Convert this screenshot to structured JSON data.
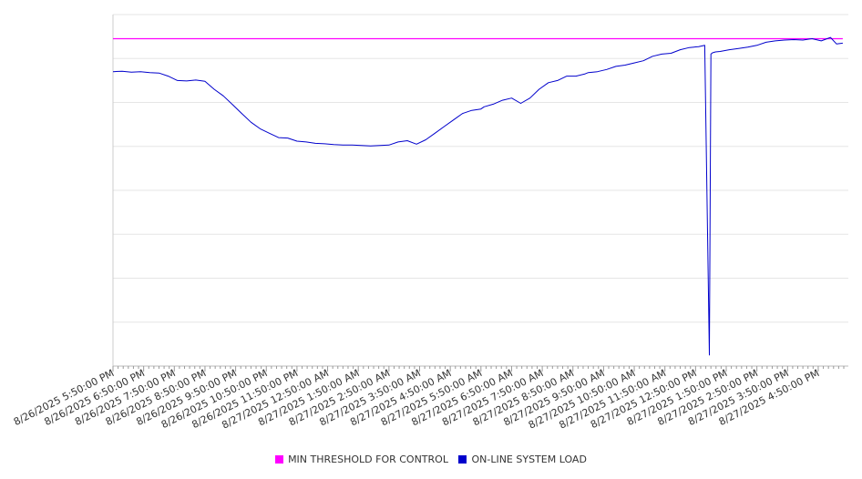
{
  "chart_data": {
    "type": "line",
    "title": "",
    "xlabel": "",
    "ylabel": "",
    "x_tick_labels": [
      "8/26/2025 5:50:00 PM",
      "8/26/2025 6:50:00 PM",
      "8/26/2025 7:50:00 PM",
      "8/26/2025 8:50:00 PM",
      "8/26/2025 9:50:00 PM",
      "8/26/2025 10:50:00 PM",
      "8/26/2025 11:50:00 PM",
      "8/27/2025 12:50:00 AM",
      "8/27/2025 1:50:00 AM",
      "8/27/2025 2:50:00 AM",
      "8/27/2025 3:50:00 AM",
      "8/27/2025 4:50:00 AM",
      "8/27/2025 5:50:00 AM",
      "8/27/2025 6:50:00 AM",
      "8/27/2025 7:50:00 AM",
      "8/27/2025 8:50:00 AM",
      "8/27/2025 9:50:00 AM",
      "8/27/2025 10:50:00 AM",
      "8/27/2025 11:50:00 AM",
      "8/27/2025 12:50:00 PM",
      "8/27/2025 1:50:00 PM",
      "8/27/2025 2:50:00 PM",
      "8/27/2025 3:50:00 PM",
      "8/27/2025 4:50:00 PM"
    ],
    "y_tick_labels_visible": false,
    "ylim": [
      0,
      8
    ],
    "grid": true,
    "legend_position": "bottom",
    "series": [
      {
        "name": "MIN THRESHOLD FOR CONTROL",
        "color": "#ff00ff",
        "x": [
          0,
          23.8
        ],
        "y": [
          7.45,
          7.45
        ]
      },
      {
        "name": "ON-LINE SYSTEM LOAD",
        "color": "#0000cc",
        "x": [
          0,
          0.3,
          0.6,
          0.9,
          1.2,
          1.5,
          1.8,
          2.1,
          2.4,
          2.7,
          3.0,
          3.3,
          3.6,
          3.9,
          4.2,
          4.5,
          4.8,
          5.1,
          5.4,
          5.7,
          6.0,
          6.3,
          6.6,
          6.9,
          7.2,
          7.5,
          7.8,
          8.1,
          8.4,
          8.7,
          9.0,
          9.3,
          9.6,
          9.9,
          10.2,
          10.5,
          10.8,
          11.1,
          11.4,
          11.7,
          12.0,
          12.1,
          12.4,
          12.7,
          13.0,
          13.3,
          13.6,
          13.9,
          14.2,
          14.5,
          14.8,
          15.1,
          15.4,
          15.5,
          15.8,
          16.1,
          16.4,
          16.7,
          17.0,
          17.3,
          17.6,
          17.9,
          18.2,
          18.5,
          18.8,
          19.1,
          19.3,
          19.45,
          19.5,
          19.55,
          19.65,
          19.8,
          20.1,
          20.4,
          20.7,
          21.0,
          21.3,
          21.6,
          21.9,
          22.2,
          22.5,
          22.8,
          23.1,
          23.4,
          23.6,
          23.8
        ],
        "y": [
          6.7,
          6.71,
          6.69,
          6.7,
          6.68,
          6.67,
          6.6,
          6.5,
          6.49,
          6.51,
          6.48,
          6.3,
          6.15,
          5.95,
          5.75,
          5.55,
          5.4,
          5.3,
          5.2,
          5.19,
          5.12,
          5.1,
          5.07,
          5.06,
          5.04,
          5.03,
          5.03,
          5.02,
          5.01,
          5.02,
          5.03,
          5.1,
          5.13,
          5.05,
          5.15,
          5.3,
          5.45,
          5.6,
          5.75,
          5.82,
          5.85,
          5.9,
          5.96,
          6.05,
          6.1,
          5.98,
          6.1,
          6.3,
          6.45,
          6.5,
          6.6,
          6.6,
          6.65,
          6.68,
          6.7,
          6.75,
          6.82,
          6.85,
          6.9,
          6.95,
          7.05,
          7.1,
          7.12,
          7.2,
          7.25,
          7.27,
          7.3,
          0.25,
          7.1,
          7.13,
          7.15,
          7.16,
          7.2,
          7.23,
          7.26,
          7.3,
          7.37,
          7.4,
          7.42,
          7.43,
          7.42,
          7.45,
          7.4,
          7.48,
          7.33,
          7.35
        ]
      }
    ]
  }
}
